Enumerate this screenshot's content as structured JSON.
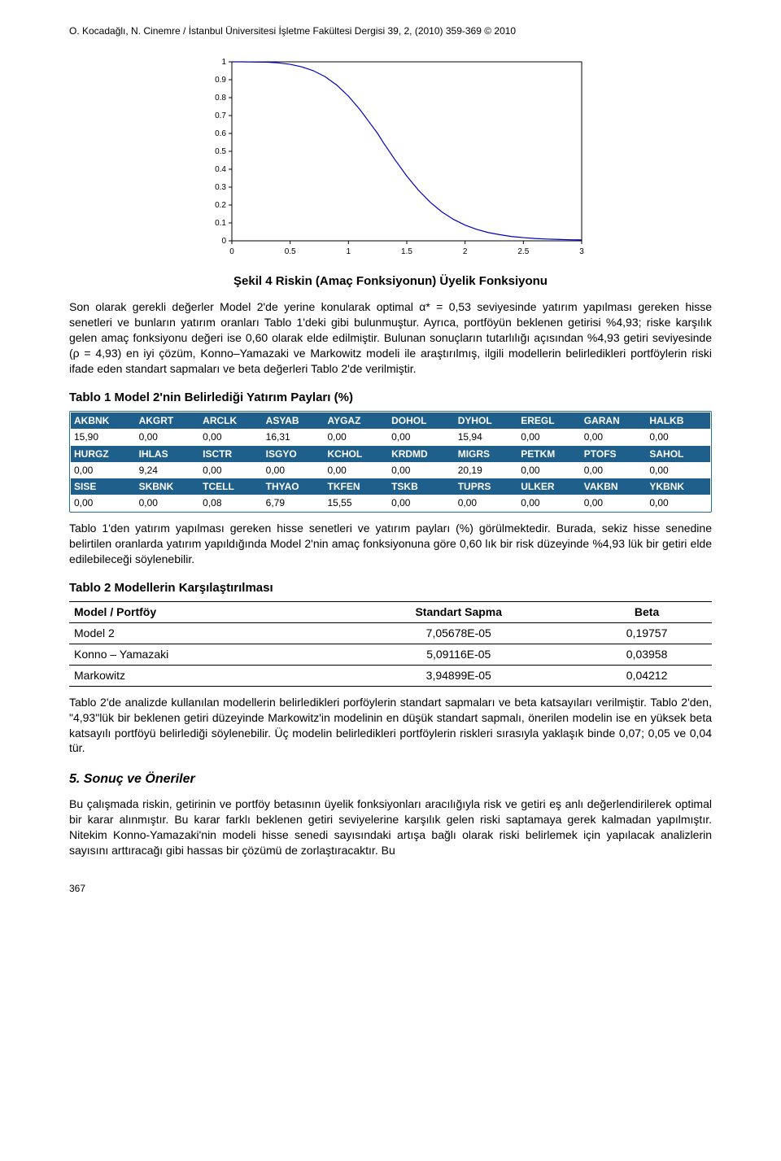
{
  "header": "O. Kocadağlı, N. Cinemre / İstanbul Üniversitesi İşletme Fakültesi Dergisi 39, 2, (2010) 359-369 © 2010",
  "chart": {
    "type": "line",
    "xlim": [
      0,
      3
    ],
    "ylim": [
      0,
      1
    ],
    "xticks": [
      0,
      0.5,
      1,
      1.5,
      2,
      2.5,
      3
    ],
    "yticks": [
      0,
      0.1,
      0.2,
      0.3,
      0.4,
      0.5,
      0.6,
      0.7,
      0.8,
      0.9,
      1
    ],
    "background_color": "#ffffff",
    "axis_color": "#000000",
    "line_color": "#0000c0",
    "line_width": 1.2,
    "tick_fontsize": 10,
    "points": [
      [
        0.0,
        1.0
      ],
      [
        0.1,
        1.0
      ],
      [
        0.2,
        0.999
      ],
      [
        0.3,
        0.998
      ],
      [
        0.4,
        0.994
      ],
      [
        0.5,
        0.986
      ],
      [
        0.6,
        0.972
      ],
      [
        0.7,
        0.95
      ],
      [
        0.8,
        0.917
      ],
      [
        0.9,
        0.87
      ],
      [
        1.0,
        0.808
      ],
      [
        1.1,
        0.732
      ],
      [
        1.2,
        0.644
      ],
      [
        1.25,
        0.6
      ],
      [
        1.3,
        0.548
      ],
      [
        1.4,
        0.452
      ],
      [
        1.5,
        0.362
      ],
      [
        1.6,
        0.283
      ],
      [
        1.7,
        0.216
      ],
      [
        1.8,
        0.162
      ],
      [
        1.9,
        0.12
      ],
      [
        2.0,
        0.088
      ],
      [
        2.1,
        0.064
      ],
      [
        2.2,
        0.046
      ],
      [
        2.3,
        0.034
      ],
      [
        2.4,
        0.024
      ],
      [
        2.5,
        0.018
      ],
      [
        2.6,
        0.013
      ],
      [
        2.7,
        0.01
      ],
      [
        2.8,
        0.008
      ],
      [
        2.9,
        0.006
      ],
      [
        3.0,
        0.005
      ]
    ]
  },
  "caption": "Şekil 4 Riskin (Amaç Fonksiyonun) Üyelik Fonksiyonu",
  "para1": "Son olarak gerekli değerler Model 2'de yerine konularak optimal α* = 0,53 seviyesinde yatırım yapılması gereken hisse senetleri ve bunların yatırım oranları Tablo 1'deki gibi bulunmuştur. Ayrıca, portföyün beklenen getirisi %4,93; riske karşılık gelen amaç fonksiyonu değeri ise 0,60 olarak elde edilmiştir. Bulunan sonuçların tutarlılığı açısından %4,93 getiri seviyesinde (ρ = 4,93) en iyi çözüm, Konno–Yamazaki ve Markowitz modeli ile araştırılmış, ilgili modellerin belirledikleri portföylerin riski ifade eden standart sapmaları ve beta değerleri Tablo 2'de verilmiştir.",
  "t1_title": "Tablo 1 Model 2'nin Belirlediği Yatırım Payları (%)",
  "t1": {
    "header_bg": "#1f5f8b",
    "header_fg": "#ffffff",
    "border_color": "#2a6ea0",
    "h1": [
      "AKBNK",
      "AKGRT",
      "ARCLK",
      "ASYAB",
      "AYGAZ",
      "DOHOL",
      "DYHOL",
      "EREGL",
      "GARAN",
      "HALKB"
    ],
    "r1": [
      "15,90",
      "0,00",
      "0,00",
      "16,31",
      "0,00",
      "0,00",
      "15,94",
      "0,00",
      "0,00",
      "0,00"
    ],
    "h2": [
      "HURGZ",
      "IHLAS",
      "ISCTR",
      "ISGYO",
      "KCHOL",
      "KRDMD",
      "MIGRS",
      "PETKM",
      "PTOFS",
      "SAHOL"
    ],
    "r2": [
      "0,00",
      "9,24",
      "0,00",
      "0,00",
      "0,00",
      "0,00",
      "20,19",
      "0,00",
      "0,00",
      "0,00"
    ],
    "h3": [
      "SISE",
      "SKBNK",
      "TCELL",
      "THYAO",
      "TKFEN",
      "TSKB",
      "TUPRS",
      "ULKER",
      "VAKBN",
      "YKBNK"
    ],
    "r3": [
      "0,00",
      "0,00",
      "0,08",
      "6,79",
      "15,55",
      "0,00",
      "0,00",
      "0,00",
      "0,00",
      "0,00"
    ]
  },
  "para2": "Tablo 1'den yatırım yapılması gereken hisse senetleri ve yatırım payları (%) görülmektedir. Burada, sekiz hisse senedine belirtilen oranlarda yatırım yapıldığında Model 2'nin amaç fonksiyonuna göre 0,60 lık bir risk düzeyinde %4,93 lük bir getiri elde edilebileceği söylenebilir.",
  "t2_title": "Tablo 2 Modellerin Karşılaştırılması",
  "t2": {
    "columns": [
      "Model / Portföy",
      "Standart Sapma",
      "Beta"
    ],
    "rows": [
      [
        "Model 2",
        "7,05678E-05",
        "0,19757"
      ],
      [
        "Konno – Yamazaki",
        "5,09116E-05",
        "0,03958"
      ],
      [
        "Markowitz",
        "3,94899E-05",
        "0,04212"
      ]
    ]
  },
  "para3": "Tablo 2'de analizde kullanılan modellerin belirledikleri porföylerin standart sapmaları ve beta katsayıları verilmiştir. Tablo 2'den, \"4,93\"lük bir beklenen getiri düzeyinde Markowitz'in modelinin en düşük standart sapmalı, önerilen modelin ise en yüksek beta katsayılı portföyü belirlediği söylenebilir. Üç modelin belirledikleri portföylerin riskleri sırasıyla yaklaşık binde 0,07; 0,05 ve 0,04 tür.",
  "section5": "5. Sonuç ve Öneriler",
  "para4": "Bu çalışmada riskin, getirinin ve portföy betasının üyelik fonksiyonları aracılığıyla risk ve getiri eş anlı değerlendirilerek optimal bir karar alınmıştır. Bu karar farklı beklenen getiri seviyelerine karşılık gelen riski saptamaya gerek kalmadan yapılmıştır. Nitekim Konno-Yamazaki'nin modeli hisse senedi sayısındaki artışa bağlı olarak riski belirlemek için yapılacak analizlerin sayısını arttıracağı gibi hassas bir çözümü de zorlaştıracaktır. Bu",
  "pagenum": "367"
}
